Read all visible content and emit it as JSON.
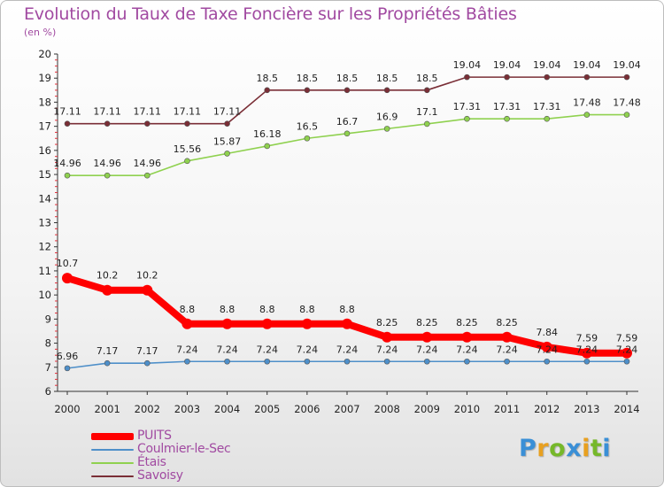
{
  "title": "Evolution du Taux de Taxe Foncière sur les Propriétés Bâties",
  "unit_label": "(en %)",
  "logo": {
    "letters": [
      "P",
      "r",
      "o",
      "x",
      "i",
      "t",
      "i"
    ],
    "colors": [
      "#3a8fd6",
      "#e8a020",
      "#76b82a",
      "#3a8fd6",
      "#e8a020",
      "#76b82a",
      "#3a8fd6"
    ]
  },
  "chart_data": {
    "type": "line",
    "x": [
      "2000",
      "2001",
      "2002",
      "2003",
      "2004",
      "2005",
      "2006",
      "2007",
      "2008",
      "2009",
      "2010",
      "2011",
      "2012",
      "2013",
      "2014"
    ],
    "y_ticks": [
      "6",
      "7",
      "8",
      "9",
      "10",
      "11",
      "12",
      "13",
      "14",
      "15",
      "16",
      "17",
      "18",
      "19",
      "20"
    ],
    "ylim": [
      6,
      20
    ],
    "grid": false,
    "legend_position": "bottom-left",
    "series": [
      {
        "name": "PUITS",
        "color": "#ff0000",
        "values": [
          10.7,
          10.2,
          10.2,
          8.8,
          8.8,
          8.8,
          8.8,
          8.8,
          8.25,
          8.25,
          8.25,
          8.25,
          7.84,
          7.59,
          7.59
        ],
        "labels": [
          "10.7",
          "10.2",
          "10.2",
          "8.8",
          "8.8",
          "8.8",
          "8.8",
          "8.8",
          "8.25",
          "8.25",
          "8.25",
          "8.25",
          "7.84",
          "7.59",
          "7.59"
        ]
      },
      {
        "name": "Coulmier-le-Sec",
        "color": "#4e8fc9",
        "values": [
          6.96,
          7.17,
          7.17,
          7.24,
          7.24,
          7.24,
          7.24,
          7.24,
          7.24,
          7.24,
          7.24,
          7.24,
          7.24,
          7.24,
          7.24
        ],
        "labels": [
          "6.96",
          "7.17",
          "7.17",
          "7.24",
          "7.24",
          "7.24",
          "7.24",
          "7.24",
          "7.24",
          "7.24",
          "7.24",
          "7.24",
          "7.24",
          "7.24",
          "7.24"
        ]
      },
      {
        "name": "Étais",
        "color": "#8fd14f",
        "values": [
          14.96,
          14.96,
          14.96,
          15.56,
          15.87,
          16.18,
          16.5,
          16.7,
          16.9,
          17.1,
          17.31,
          17.31,
          17.31,
          17.48,
          17.48
        ],
        "labels": [
          "14.96",
          "14.96",
          "14.96",
          "15.56",
          "15.87",
          "16.18",
          "16.5",
          "16.7",
          "16.9",
          "17.1",
          "17.31",
          "17.31",
          "17.31",
          "17.48",
          "17.48"
        ]
      },
      {
        "name": "Savoisy",
        "color": "#7a2e36",
        "values": [
          17.11,
          17.11,
          17.11,
          17.11,
          17.11,
          18.5,
          18.5,
          18.5,
          18.5,
          18.5,
          19.04,
          19.04,
          19.04,
          19.04,
          19.04
        ],
        "labels": [
          "17.11",
          "17.11",
          "17.11",
          "17.11",
          "17.11",
          "18.5",
          "18.5",
          "18.5",
          "18.5",
          "18.5",
          "19.04",
          "19.04",
          "19.04",
          "19.04",
          "19.04"
        ]
      }
    ]
  }
}
